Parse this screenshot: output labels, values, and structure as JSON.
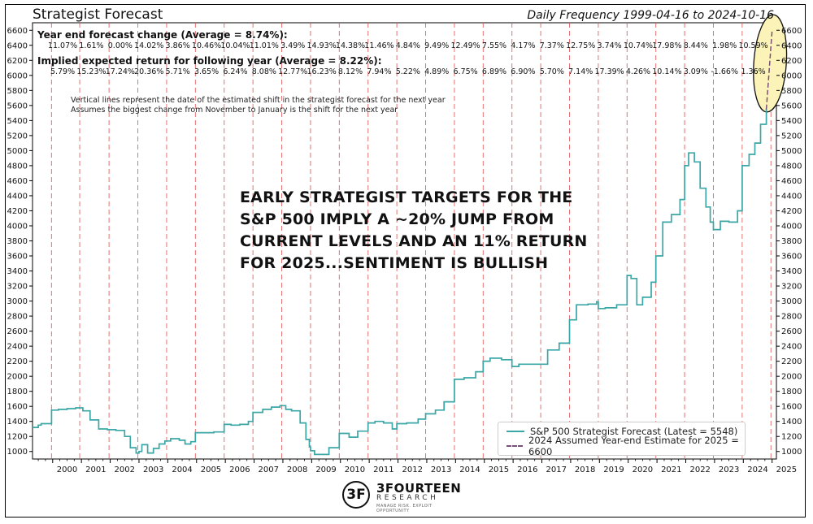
{
  "chart_data": {
    "type": "line",
    "title": "Strategist Forecast",
    "subtitle": "Daily Frequency 1999-04-16 to 2024-10-16",
    "xlabel": "",
    "ylabel": "",
    "xlim": [
      1999.3,
      2025.15
    ],
    "ylim": [
      900,
      6700
    ],
    "yticks": [
      1000,
      1200,
      1400,
      1600,
      1800,
      2000,
      2200,
      2400,
      2600,
      2800,
      3000,
      3200,
      3400,
      3600,
      3800,
      4000,
      4200,
      4400,
      4600,
      4800,
      5000,
      5200,
      5400,
      5600,
      5800,
      6000,
      6200,
      6400,
      6600
    ],
    "xtick_labels": [
      "2000",
      "2001",
      "2002",
      "2003",
      "2004",
      "2005",
      "2006",
      "2007",
      "2008",
      "2009",
      "2010",
      "2011",
      "2012",
      "2013",
      "2014",
      "2015",
      "2016",
      "2017",
      "2018",
      "2019",
      "2020",
      "2021",
      "2022",
      "2023",
      "2024",
      "2025"
    ],
    "grid": false,
    "legend_position": "bottom-right",
    "vertical_lines": [
      1999.96,
      2000.94,
      2001.96,
      2002.96,
      2003.96,
      2004.96,
      2005.96,
      2006.96,
      2007.96,
      2008.96,
      2009.96,
      2010.96,
      2011.96,
      2012.96,
      2013.96,
      2014.96,
      2015.96,
      2016.96,
      2017.96,
      2018.96,
      2019.96,
      2020.96,
      2021.96,
      2022.96,
      2023.96,
      2024.96
    ],
    "series": [
      {
        "name": "S&P 500 Strategist Forecast (Latest = 5548)",
        "color": "#3aa6a6",
        "x": [
          1999.3,
          1999.5,
          1999.6,
          1999.96,
          2000.2,
          2000.5,
          2000.8,
          2000.94,
          2001.05,
          2001.3,
          2001.6,
          2001.9,
          2002.2,
          2002.5,
          2002.7,
          2002.9,
          2003.0,
          2003.1,
          2003.3,
          2003.5,
          2003.7,
          2003.9,
          2004.1,
          2004.4,
          2004.6,
          2004.8,
          2004.96,
          2005.3,
          2005.6,
          2005.96,
          2006.2,
          2006.5,
          2006.8,
          2006.96,
          2007.3,
          2007.6,
          2007.9,
          2008.1,
          2008.3,
          2008.6,
          2008.8,
          2008.92,
          2008.96,
          2009.1,
          2009.3,
          2009.6,
          2009.96,
          2010.3,
          2010.6,
          2010.96,
          2011.2,
          2011.5,
          2011.8,
          2011.96,
          2012.3,
          2012.7,
          2012.96,
          2013.3,
          2013.6,
          2013.96,
          2014.3,
          2014.7,
          2014.96,
          2015.2,
          2015.6,
          2015.96,
          2016.2,
          2016.6,
          2016.96,
          2017.2,
          2017.6,
          2017.96,
          2018.2,
          2018.6,
          2018.9,
          2018.96,
          2019.2,
          2019.6,
          2019.96,
          2020.1,
          2020.3,
          2020.5,
          2020.8,
          2020.96,
          2021.2,
          2021.5,
          2021.8,
          2021.96,
          2022.1,
          2022.3,
          2022.5,
          2022.7,
          2022.85,
          2022.96,
          2023.2,
          2023.5,
          2023.8,
          2023.96,
          2024.2,
          2024.4,
          2024.6,
          2024.8
        ],
        "values": [
          1320,
          1350,
          1370,
          1550,
          1560,
          1570,
          1580,
          1580,
          1540,
          1420,
          1300,
          1290,
          1280,
          1200,
          1050,
          980,
          1000,
          1090,
          980,
          1040,
          1100,
          1140,
          1170,
          1150,
          1100,
          1130,
          1250,
          1250,
          1260,
          1360,
          1350,
          1360,
          1400,
          1520,
          1560,
          1590,
          1610,
          1560,
          1540,
          1380,
          1160,
          1060,
          1010,
          960,
          960,
          1050,
          1240,
          1190,
          1270,
          1380,
          1400,
          1380,
          1300,
          1370,
          1380,
          1430,
          1500,
          1550,
          1660,
          1960,
          1980,
          2060,
          2200,
          2240,
          2220,
          2130,
          2160,
          2160,
          2160,
          2350,
          2440,
          2750,
          2950,
          2960,
          2990,
          2900,
          2910,
          2950,
          3340,
          3300,
          2950,
          3050,
          3250,
          3600,
          4050,
          4150,
          4350,
          4800,
          4970,
          4850,
          4500,
          4250,
          4050,
          3950,
          4060,
          4050,
          4200,
          4800,
          4950,
          5100,
          5350,
          5548
        ]
      },
      {
        "name": "2024 Assumed Year-end Estimate for 2025 = 6600",
        "color": "#7a4f7a",
        "dashed": true,
        "x": [
          2024.8,
          2025.0
        ],
        "values": [
          5548,
          6600
        ]
      }
    ],
    "annotations": {
      "row1_title": "Year end forecast change (Average = 8.74%):",
      "row1_values": [
        "11.07%",
        "1.61%",
        "0.00%",
        "14.02%",
        "3.86%",
        "10.46%",
        "10.04%",
        "11.01%",
        "3.49%",
        "14.93%",
        "14.38%",
        "11.46%",
        "4.84%",
        "9.49%",
        "12.49%",
        "7.55%",
        "4.17%",
        "7.37%",
        "12.75%",
        "3.74%",
        "10.74%",
        "17.98%",
        "8.44%",
        "1.98%",
        "10.59%"
      ],
      "row2_title": "Implied expected return for following year (Average = 8.22%):",
      "row2_values": [
        "5.79%",
        "15.23%",
        "17.24%",
        "20.36%",
        "5.71%",
        "3.65%",
        "6.24%",
        "8.08%",
        "12.77%",
        "16.23%",
        "8.12%",
        "7.94%",
        "5.22%",
        "4.89%",
        "6.75%",
        "6.89%",
        "6.90%",
        "5.70%",
        "7.14%",
        "17.39%",
        "4.26%",
        "10.14%",
        "3.09%",
        "-1.66%",
        "1.36%"
      ],
      "note_line1": "Vertical lines represent the date of the estimated shift in the strategist forecast for the next year",
      "note_line2": "Assumes the biggest change from November to January is the shift for the next year",
      "headline_line1": "EARLY STRATEGIST TARGETS FOR THE",
      "headline_line2": "S&P 500 IMPLY A ~20% JUMP FROM",
      "headline_line3": "CURRENT LEVELS AND AN 11% RETURN",
      "headline_line4": "FOR 2025...SENTIMENT IS BULLISH"
    },
    "highlight_color": "#fbf3b8"
  },
  "logo": {
    "mark": "3F",
    "name": "3FOURTEEN",
    "sub": "RESEARCH",
    "tagline": "MANAGE RISK. EXPLOIT OPPORTUNITY"
  },
  "colors": {
    "forecast_line": "#3aa6a6",
    "estimate_line": "#7a4f7a",
    "vertical_line": "#e05a5a",
    "highlight_fill": "#fbf3b8"
  }
}
